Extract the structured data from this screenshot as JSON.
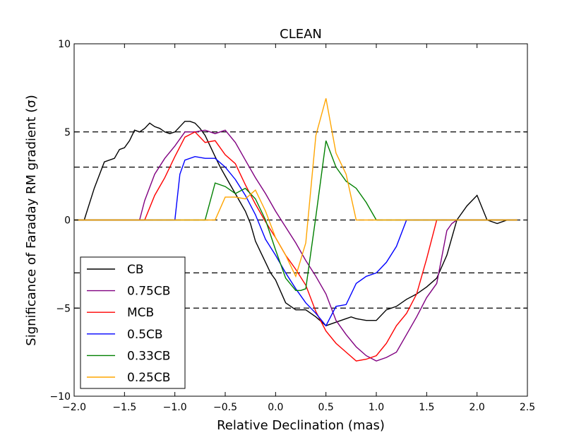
{
  "chart_data": {
    "type": "line",
    "title": "CLEAN",
    "xlabel": "Relative Declination (mas)",
    "ylabel": "Significance of Faraday RM gradient (σ)",
    "xlim": [
      -2.0,
      2.5
    ],
    "ylim": [
      -10,
      10
    ],
    "xticks": [
      -2.0,
      -1.5,
      -1.0,
      -0.5,
      0.0,
      0.5,
      1.0,
      1.5,
      2.0,
      2.5
    ],
    "xtick_labels": [
      "−2.0",
      "−1.5",
      "−1.0",
      "−0.5",
      "0.0",
      "0.5",
      "1.0",
      "1.5",
      "2.0",
      "2.5"
    ],
    "yticks": [
      -10,
      -5,
      0,
      5,
      10
    ],
    "ytick_labels": [
      "−10",
      "−5",
      "0",
      "5",
      "10"
    ],
    "hlines": [
      5,
      3,
      0,
      -3,
      -5
    ],
    "legend_position": "lower-left",
    "series": [
      {
        "name": "CB",
        "color": "#000000",
        "x": [
          -2.0,
          -1.9,
          -1.8,
          -1.7,
          -1.6,
          -1.55,
          -1.5,
          -1.45,
          -1.4,
          -1.35,
          -1.3,
          -1.25,
          -1.2,
          -1.15,
          -1.1,
          -1.05,
          -1.0,
          -0.95,
          -0.9,
          -0.85,
          -0.8,
          -0.75,
          -0.7,
          -0.65,
          -0.6,
          -0.55,
          -0.5,
          -0.45,
          -0.4,
          -0.35,
          -0.3,
          -0.25,
          -0.2,
          -0.15,
          -0.1,
          -0.05,
          0.0,
          0.1,
          0.2,
          0.3,
          0.4,
          0.5,
          0.6,
          0.7,
          0.75,
          0.8,
          0.9,
          1.0,
          1.1,
          1.2,
          1.3,
          1.4,
          1.5,
          1.6,
          1.7,
          1.8,
          1.9,
          2.0,
          2.1,
          2.2,
          2.3,
          2.4
        ],
        "y": [
          0,
          0,
          1.8,
          3.3,
          3.5,
          4.0,
          4.1,
          4.5,
          5.1,
          5.0,
          5.2,
          5.5,
          5.3,
          5.2,
          5.0,
          4.9,
          5.0,
          5.3,
          5.6,
          5.6,
          5.5,
          5.2,
          4.8,
          4.2,
          3.6,
          3.0,
          2.5,
          2.0,
          1.5,
          1.0,
          0.5,
          -0.2,
          -1.2,
          -1.8,
          -2.4,
          -3.0,
          -3.4,
          -4.7,
          -5.1,
          -5.1,
          -5.5,
          -6.0,
          -5.8,
          -5.6,
          -5.5,
          -5.6,
          -5.7,
          -5.7,
          -5.1,
          -4.9,
          -4.5,
          -4.2,
          -3.8,
          -3.3,
          -2.0,
          0,
          0.8,
          1.4,
          0.0,
          -0.2,
          0.0,
          0.0
        ]
      },
      {
        "name": "0.75CB",
        "color": "#800080",
        "x": [
          -2.0,
          -1.35,
          -1.3,
          -1.2,
          -1.1,
          -1.0,
          -0.9,
          -0.8,
          -0.7,
          -0.6,
          -0.5,
          -0.4,
          -0.3,
          -0.2,
          -0.1,
          0.0,
          0.1,
          0.2,
          0.3,
          0.4,
          0.5,
          0.6,
          0.7,
          0.8,
          0.9,
          1.0,
          1.1,
          1.2,
          1.3,
          1.4,
          1.5,
          1.6,
          1.7,
          1.75,
          1.8,
          2.4
        ],
        "y": [
          0,
          0,
          1.1,
          2.6,
          3.5,
          4.2,
          5.0,
          5.0,
          5.1,
          4.9,
          5.1,
          4.4,
          3.4,
          2.4,
          1.5,
          0.5,
          -0.4,
          -1.3,
          -2.3,
          -3.2,
          -4.2,
          -5.7,
          -6.5,
          -7.2,
          -7.7,
          -8.0,
          -7.8,
          -7.5,
          -6.5,
          -5.5,
          -4.4,
          -3.6,
          -0.6,
          -0.2,
          0,
          0
        ]
      },
      {
        "name": "MCB",
        "color": "#ff0000",
        "x": [
          -2.0,
          -1.3,
          -1.2,
          -1.1,
          -1.0,
          -0.9,
          -0.8,
          -0.7,
          -0.6,
          -0.5,
          -0.4,
          -0.3,
          -0.2,
          -0.1,
          0.0,
          0.1,
          0.2,
          0.3,
          0.4,
          0.5,
          0.6,
          0.7,
          0.8,
          0.9,
          1.0,
          1.1,
          1.2,
          1.3,
          1.4,
          1.5,
          1.6,
          2.4
        ],
        "y": [
          0,
          0,
          1.4,
          2.4,
          3.6,
          4.7,
          5.0,
          4.4,
          4.5,
          3.7,
          3.2,
          2.0,
          0.9,
          -0.1,
          -1.0,
          -2.0,
          -2.8,
          -3.7,
          -5.2,
          -6.3,
          -7.0,
          -7.5,
          -8.0,
          -7.9,
          -7.7,
          -7.0,
          -6.0,
          -5.3,
          -4.2,
          -2.2,
          0,
          0
        ]
      },
      {
        "name": "0.5CB",
        "color": "#0000ff",
        "x": [
          -2.0,
          -1.0,
          -0.95,
          -0.9,
          -0.8,
          -0.7,
          -0.6,
          -0.5,
          -0.4,
          -0.3,
          -0.2,
          -0.1,
          0.0,
          0.1,
          0.2,
          0.3,
          0.4,
          0.5,
          0.6,
          0.7,
          0.8,
          0.9,
          1.0,
          1.1,
          1.2,
          1.3,
          2.4
        ],
        "y": [
          0,
          0,
          2.6,
          3.4,
          3.6,
          3.5,
          3.5,
          3.0,
          2.3,
          1.4,
          0.3,
          -1.1,
          -2.0,
          -3.0,
          -3.9,
          -4.7,
          -5.3,
          -6.0,
          -4.9,
          -4.8,
          -3.6,
          -3.2,
          -3.0,
          -2.4,
          -1.5,
          0,
          0
        ]
      },
      {
        "name": "0.33CB",
        "color": "#008000",
        "x": [
          -2.0,
          -0.7,
          -0.6,
          -0.5,
          -0.4,
          -0.3,
          -0.2,
          -0.1,
          0.0,
          0.1,
          0.2,
          0.25,
          0.3,
          0.4,
          0.5,
          0.6,
          0.7,
          0.8,
          0.9,
          1.0,
          2.4
        ],
        "y": [
          0,
          0,
          2.1,
          1.9,
          1.5,
          1.8,
          1.2,
          0.0,
          -1.7,
          -3.3,
          -4.0,
          -4.0,
          -3.9,
          0.2,
          4.5,
          3.0,
          2.2,
          1.8,
          1.0,
          0,
          0
        ]
      },
      {
        "name": "0.25CB",
        "color": "#ffa500",
        "x": [
          -2.0,
          -0.6,
          -0.5,
          -0.4,
          -0.3,
          -0.2,
          -0.1,
          0.0,
          0.1,
          0.2,
          0.3,
          0.4,
          0.5,
          0.6,
          0.7,
          0.8,
          2.4
        ],
        "y": [
          0,
          0,
          1.3,
          1.3,
          1.2,
          1.7,
          0.5,
          -1.0,
          -2.0,
          -3.2,
          -1.3,
          4.8,
          6.9,
          3.8,
          2.6,
          0,
          0
        ]
      }
    ]
  }
}
